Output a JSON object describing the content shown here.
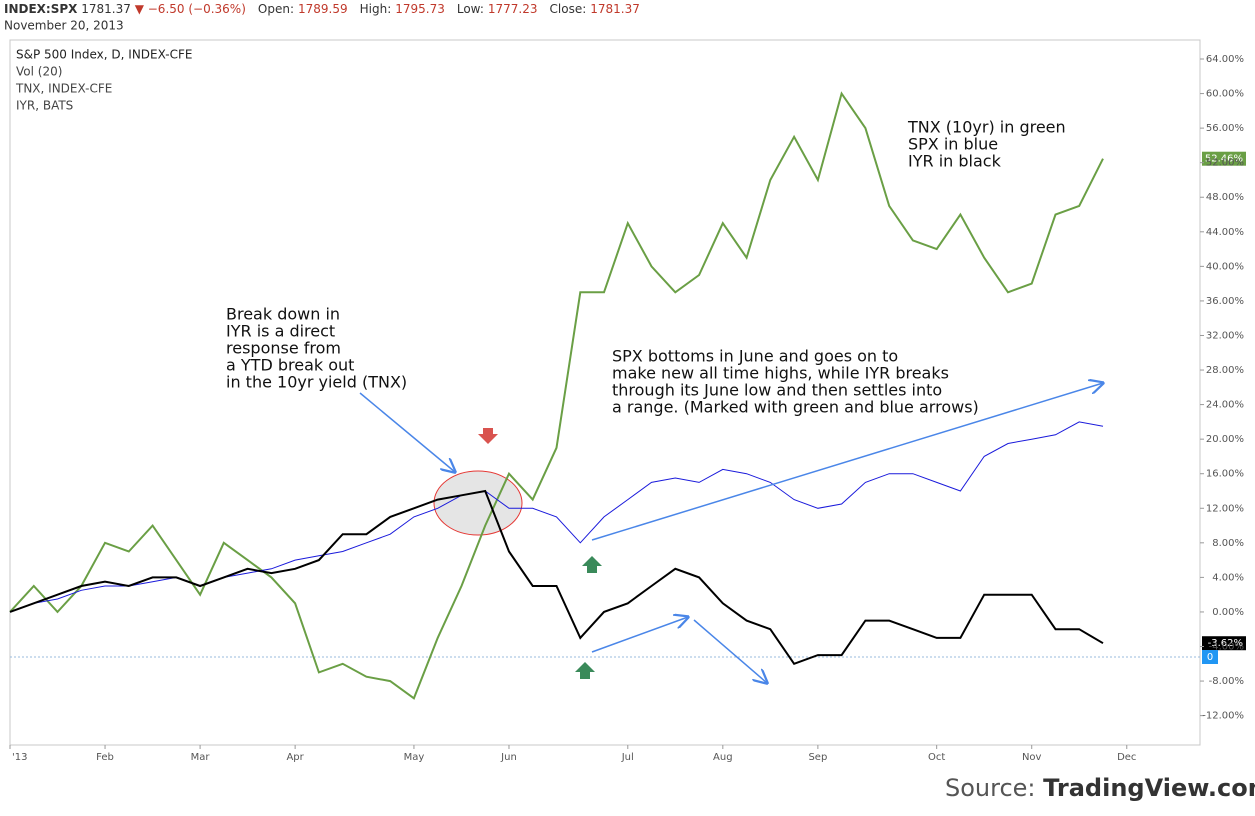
{
  "header": {
    "symbol": "INDEX:SPX",
    "price": "1781.37",
    "change": "−6.50 (−0.36%)",
    "fields": [
      {
        "label": "Open:",
        "value": "1789.59"
      },
      {
        "label": "High:",
        "value": "1795.73"
      },
      {
        "label": "Low:",
        "value": "1777.23"
      },
      {
        "label": "Close:",
        "value": "1781.37"
      }
    ],
    "date": "November 20, 2013"
  },
  "legend_lines": [
    "S&P 500 Index, D, INDEX-CFE",
    "Vol (20)",
    "TNX, INDEX-CFE",
    "IYR, BATS"
  ],
  "chart_data": {
    "type": "line",
    "categories": [
      "'13",
      null,
      null,
      null,
      "Feb",
      null,
      null,
      null,
      "Mar",
      null,
      null,
      null,
      "Apr",
      null,
      null,
      null,
      null,
      "May",
      null,
      null,
      null,
      "Jun",
      null,
      null,
      null,
      null,
      "Jul",
      null,
      null,
      null,
      "Aug",
      null,
      null,
      null,
      "Sep",
      null,
      null,
      null,
      null,
      "Oct",
      null,
      null,
      null,
      "Nov",
      null,
      null,
      null,
      "Dec"
    ],
    "series": [
      {
        "name": "TNX",
        "color": "#6a9f45",
        "width": 2,
        "values": [
          0,
          3,
          0,
          3,
          8,
          7,
          10,
          6,
          2,
          8,
          6,
          4,
          1,
          -7,
          -6,
          -7.5,
          -8,
          -10,
          -3,
          3,
          10,
          16,
          13,
          19,
          37,
          37,
          45,
          40,
          37,
          39,
          45,
          41,
          50,
          55,
          50,
          60,
          56,
          47,
          43,
          42,
          46,
          41,
          37,
          38,
          46,
          47,
          52.46,
          null
        ],
        "value_labels": [
          null,
          null,
          null,
          null,
          null,
          null,
          null,
          null,
          null,
          null,
          null,
          null,
          null,
          null,
          null,
          null,
          null,
          null,
          null,
          null,
          null,
          null,
          null,
          null,
          null,
          null,
          null,
          null,
          null,
          null,
          null,
          null,
          null,
          null,
          null,
          null,
          null,
          null,
          null,
          null,
          null,
          null,
          null,
          null,
          null,
          null,
          "52.46%",
          null
        ]
      },
      {
        "name": "SPX",
        "color": "#1a1adb",
        "width": 1,
        "values": [
          0,
          1,
          1.5,
          2.5,
          3,
          3,
          3.5,
          4,
          3,
          4,
          4.5,
          5,
          6,
          6.5,
          7,
          8,
          9,
          11,
          12,
          13.5,
          14,
          12,
          12,
          11,
          8,
          11,
          13,
          15,
          15.5,
          15,
          16.5,
          16,
          15,
          13,
          12,
          12.5,
          15,
          16,
          16,
          15,
          14,
          18,
          19.5,
          20,
          20.5,
          22,
          21.5,
          null
        ]
      },
      {
        "name": "IYR",
        "color": "#000000",
        "width": 2,
        "values": [
          0,
          1,
          2,
          3,
          3.5,
          3,
          4,
          4,
          3,
          4,
          5,
          4.5,
          5,
          6,
          9,
          9,
          11,
          12,
          13,
          13.5,
          14,
          7,
          3,
          3,
          -3,
          0,
          1,
          3,
          5,
          4,
          1,
          -1,
          -2,
          -6,
          -5,
          -5,
          -1,
          -1,
          -2,
          -3,
          -3,
          2,
          2,
          2,
          -2,
          -2,
          -3.62,
          null
        ],
        "value_labels": [
          null,
          null,
          null,
          null,
          null,
          null,
          null,
          null,
          null,
          null,
          null,
          null,
          null,
          null,
          null,
          null,
          null,
          null,
          null,
          null,
          null,
          null,
          null,
          null,
          null,
          null,
          null,
          null,
          null,
          null,
          null,
          null,
          null,
          null,
          null,
          null,
          null,
          null,
          null,
          null,
          null,
          null,
          null,
          null,
          null,
          null,
          "-3.62%",
          null
        ]
      }
    ],
    "volume_zero": 0,
    "ylim": [
      -15.4,
      66.2
    ],
    "yticks": [
      {
        "value": -12,
        "label": "-12.00%"
      },
      {
        "value": -8,
        "label": "-8.00%"
      },
      {
        "value": -4,
        "label": "-4.00%"
      },
      {
        "value": 0,
        "label": "0.00%"
      },
      {
        "value": 4,
        "label": "4.00%"
      },
      {
        "value": 8,
        "label": "8.00%"
      },
      {
        "value": 12,
        "label": "12.00%"
      },
      {
        "value": 16,
        "label": "16.00%"
      },
      {
        "value": 20,
        "label": "20.00%"
      },
      {
        "value": 24,
        "label": "24.00%"
      },
      {
        "value": 28,
        "label": "28.00%"
      },
      {
        "value": 32,
        "label": "32.00%"
      },
      {
        "value": 36,
        "label": "36.00%"
      },
      {
        "value": 40,
        "label": "40.00%"
      },
      {
        "value": 44,
        "label": "44.00%"
      },
      {
        "value": 48,
        "label": "48.00%"
      },
      {
        "value": 52,
        "label": "52.00%"
      },
      {
        "value": 56,
        "label": "56.00%"
      },
      {
        "value": 60,
        "label": "60.00%"
      },
      {
        "value": 64,
        "label": "64.00%"
      }
    ],
    "annotations": [
      {
        "lines": [
          "TNX (10yr) in green",
          "SPX in blue",
          "IYR in black"
        ]
      },
      {
        "lines": [
          "Break down in",
          "IYR is a direct",
          "response from",
          "a YTD break out",
          "in the 10yr yield (TNX)"
        ]
      },
      {
        "lines": [
          "SPX bottoms in June and goes on to",
          "make new all time highs, while IYR breaks",
          "through its June low and then settles into",
          "a range. (Marked with green and blue arrows)"
        ]
      }
    ]
  },
  "source": {
    "label": "Source:",
    "name": "TradingView.com"
  }
}
